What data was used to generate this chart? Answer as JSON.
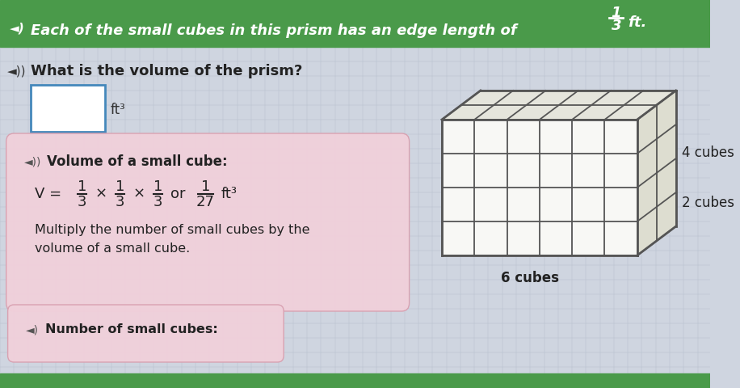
{
  "bg_color": "#cfd5e0",
  "header_color": "#4a9a4a",
  "header_text": "Each of the small cubes in this prism has an edge length of ",
  "header_suffix": " ft.",
  "question_text": "What is the volume of the prism?",
  "unit_label": "ft³",
  "hint_box_color": "#f0d0da",
  "hint_title": "Volume of a small cube:",
  "hint_line2": "Multiply the number of small cubes by the",
  "hint_line3": "volume of a small cube.",
  "bottom_tab_text": "Number of small cubes:",
  "cube_label_right_top": "4 cubes",
  "cube_label_right_bottom": "2 cubes",
  "cube_label_bottom": "6 cubes",
  "grid_color": "#555555",
  "cube_face_color": "#f8f8f5",
  "cube_top_color": "#e5e5dc",
  "cube_side_color": "#ddddd0",
  "bottom_bar_color": "#4a9a4a",
  "input_box_color": "#ffffff",
  "input_box_border": "#4488bb",
  "grid_rows": 4,
  "grid_cols": 6,
  "grid_depth": 2
}
